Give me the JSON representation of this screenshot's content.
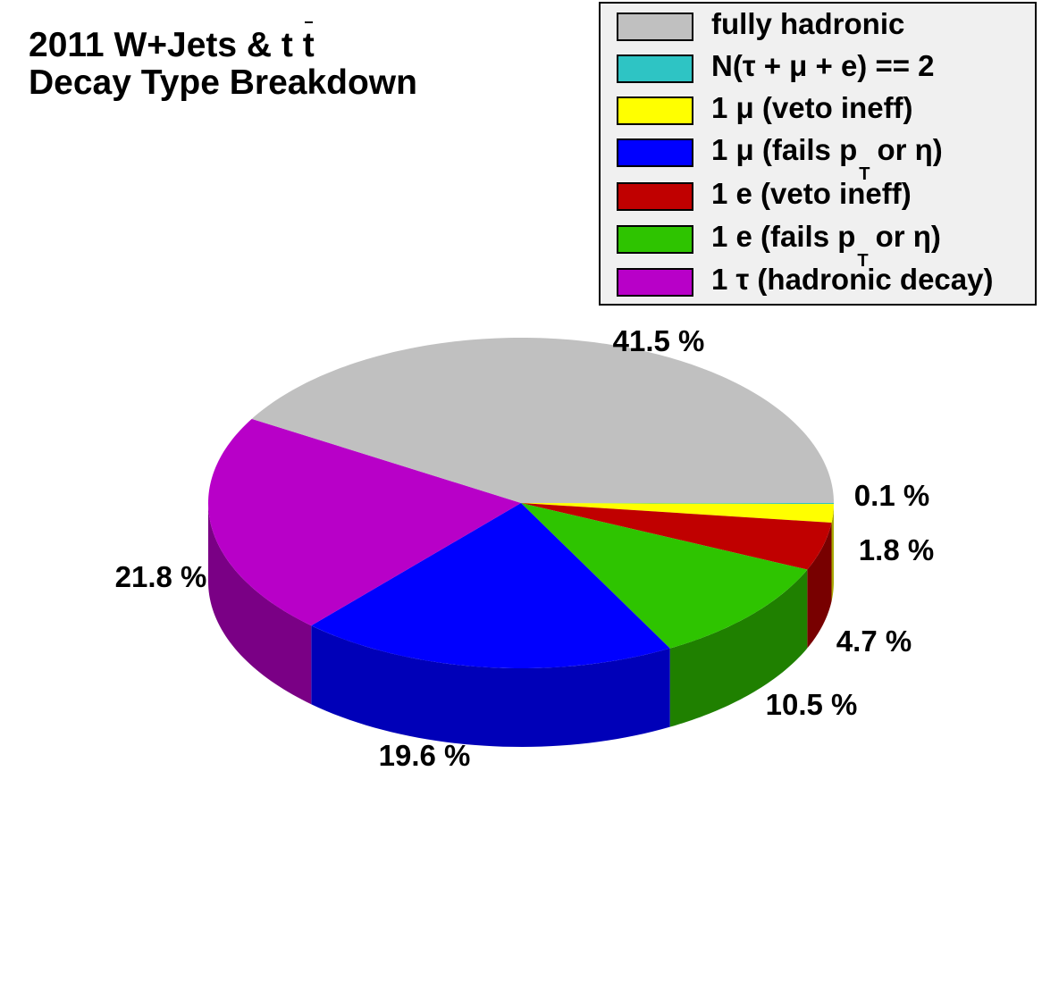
{
  "title": {
    "line1_prefix": "2011 W+Jets & t ",
    "line1_tbar": "t",
    "line2": "Decay Type Breakdown"
  },
  "legend": [
    {
      "name": "fully hadronic",
      "color": "#c0c0c0",
      "label_pre": "fully hadronic"
    },
    {
      "name": "N(tau + mu + e) == 2",
      "color": "#2ec4c4",
      "label_pre": "N(τ + μ + e) == 2"
    },
    {
      "name": "1 mu (veto ineff)",
      "color": "#ffff00",
      "label_pre": "1 μ (veto ineff)"
    },
    {
      "name": "1 mu (fails pT or eta)",
      "color": "#0000ff",
      "label_pre": "1 μ (fails p",
      "label_sub": "T",
      "label_post": "or η)"
    },
    {
      "name": "1 e (veto ineff)",
      "color": "#c00000",
      "label_pre": "1 e (veto ineff)"
    },
    {
      "name": "1 e (fails pT or eta)",
      "color": "#2ec400",
      "label_pre": "1 e (fails p",
      "label_sub": "T",
      "label_post": "or η)"
    },
    {
      "name": "1 tau (hadronic decay)",
      "color": "#b800c8",
      "label_pre": "1 τ (hadronic decay)"
    }
  ],
  "chart_data": {
    "type": "pie",
    "title": "2011 W+Jets & t t̄ Decay Type Breakdown",
    "slices": [
      {
        "label": "N(τ + μ + e) == 2",
        "value": 0.1,
        "value_label": "0.1 %",
        "color": "#2ec4c4",
        "side_color": "#1a8080"
      },
      {
        "label": "1 μ (veto ineff)",
        "value": 1.8,
        "value_label": "1.8 %",
        "color": "#ffff00",
        "side_color": "#a8a800"
      },
      {
        "label": "1 e (veto ineff)",
        "value": 4.7,
        "value_label": "4.7 %",
        "color": "#c00000",
        "side_color": "#780000"
      },
      {
        "label": "1 e (fails pT or η)",
        "value": 10.5,
        "value_label": "10.5 %",
        "color": "#2ec400",
        "side_color": "#1f8000"
      },
      {
        "label": "1 μ (fails pT or η)",
        "value": 19.6,
        "value_label": "19.6 %",
        "color": "#0000ff",
        "side_color": "#0000b8"
      },
      {
        "label": "1 τ (hadronic decay)",
        "value": 21.8,
        "value_label": "21.8 %",
        "color": "#b800c8",
        "side_color": "#7a0085"
      },
      {
        "label": "fully hadronic",
        "value": 41.5,
        "value_label": "41.5 %",
        "color": "#c0c0c0",
        "side_color": "#808080"
      }
    ]
  }
}
